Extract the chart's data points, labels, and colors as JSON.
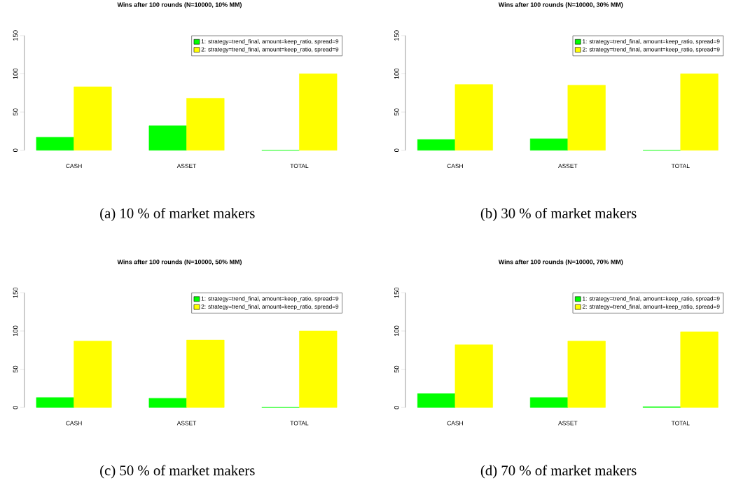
{
  "chart_data": [
    {
      "type": "bar",
      "title": "Wins after 100 rounds (N=10000, 10% MM)",
      "annotations": [
        "(a) 10 % of market makers"
      ],
      "categories": [
        "CASH",
        "ASSET",
        "TOTAL"
      ],
      "series": [
        {
          "name": "1: strategy=trend_final, amount=keep_ratio, spread=9",
          "color": "#00ff00",
          "values": [
            17,
            32,
            0
          ]
        },
        {
          "name": "2: strategy=trend_final, amount=keep_ratio, spread=9",
          "color": "#ffff00",
          "values": [
            83,
            68,
            100
          ]
        }
      ],
      "ylim": [
        0,
        150
      ],
      "yticks": [
        0,
        50,
        100,
        150
      ],
      "legend": "top right"
    },
    {
      "type": "bar",
      "title": "Wins after 100 rounds (N=10000, 30% MM)",
      "annotations": [
        "(b) 30 % of market makers"
      ],
      "categories": [
        "CASH",
        "ASSET",
        "TOTAL"
      ],
      "series": [
        {
          "name": "1: strategy=trend_final, amount=keep_ratio, spread=9",
          "color": "#00ff00",
          "values": [
            14,
            15,
            0
          ]
        },
        {
          "name": "2: strategy=trend_final, amount=keep_ratio, spread=9",
          "color": "#ffff00",
          "values": [
            86,
            85,
            100
          ]
        }
      ],
      "ylim": [
        0,
        150
      ],
      "yticks": [
        0,
        50,
        100,
        150
      ],
      "legend": "top right"
    },
    {
      "type": "bar",
      "title": "Wins after 100 rounds (N=10000, 50% MM)",
      "annotations": [
        "(c) 50 % of market makers"
      ],
      "categories": [
        "CASH",
        "ASSET",
        "TOTAL"
      ],
      "series": [
        {
          "name": "1: strategy=trend_final, amount=keep_ratio, spread=9",
          "color": "#00ff00",
          "values": [
            13,
            12,
            0
          ]
        },
        {
          "name": "2: strategy=trend_final, amount=keep_ratio, spread=9",
          "color": "#ffff00",
          "values": [
            87,
            88,
            100
          ]
        }
      ],
      "ylim": [
        0,
        150
      ],
      "yticks": [
        0,
        50,
        100,
        150
      ],
      "legend": "top right"
    },
    {
      "type": "bar",
      "title": "Wins after 100 rounds (N=10000, 70% MM)",
      "annotations": [
        "(d) 70 % of market makers"
      ],
      "categories": [
        "CASH",
        "ASSET",
        "TOTAL"
      ],
      "series": [
        {
          "name": "1: strategy=trend_final, amount=keep_ratio, spread=9",
          "color": "#00ff00",
          "values": [
            18,
            13,
            1
          ]
        },
        {
          "name": "2: strategy=trend_final, amount=keep_ratio, spread=9",
          "color": "#ffff00",
          "values": [
            82,
            87,
            99
          ]
        }
      ],
      "ylim": [
        0,
        150
      ],
      "yticks": [
        0,
        50,
        100,
        150
      ],
      "legend": "top right"
    }
  ]
}
